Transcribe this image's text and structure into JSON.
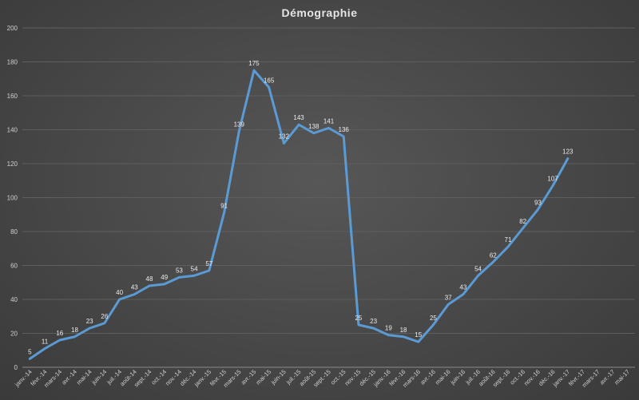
{
  "chart_data": {
    "type": "line",
    "title": "Démographie",
    "xlabel": "",
    "ylabel": "",
    "ylim": [
      0,
      200
    ],
    "yticks": [
      0,
      20,
      40,
      60,
      80,
      100,
      120,
      140,
      160,
      180,
      200
    ],
    "grid": true,
    "legend": "none",
    "line_color": "#5b9bd5",
    "categories": [
      "janv.-14",
      "févr.-14",
      "mars-14",
      "avr.-14",
      "mai-14",
      "juin-14",
      "juil.-14",
      "août-14",
      "sept.-14",
      "oct.-14",
      "nov.-14",
      "déc.-14",
      "janv.-15",
      "févr.-15",
      "mars-15",
      "avr.-15",
      "mai-15",
      "juin-15",
      "juil.-15",
      "août-15",
      "sept.-15",
      "oct.-15",
      "nov.-15",
      "déc.-15",
      "janv.-16",
      "févr.-16",
      "mars-16",
      "avr.-16",
      "mai-16",
      "juin-16",
      "juil.-16",
      "août-16",
      "sept.-16",
      "oct.-16",
      "nov.-16",
      "déc.-16",
      "janv.-17",
      "févr.-17",
      "mars-17",
      "avr.-17",
      "mai-17"
    ],
    "series": [
      {
        "values": [
          5,
          11,
          16,
          18,
          23,
          26,
          40,
          43,
          48,
          49,
          53,
          54,
          57,
          91,
          139,
          175,
          165,
          132,
          143,
          138,
          141,
          136,
          25,
          23,
          19,
          18,
          15,
          25,
          37,
          43,
          54,
          62,
          71,
          82,
          93,
          107,
          123,
          null,
          null,
          null,
          null
        ]
      }
    ]
  }
}
